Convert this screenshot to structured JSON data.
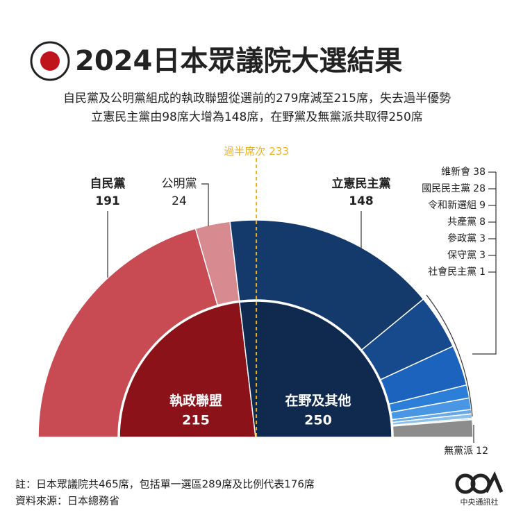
{
  "title": "2024日本眾議院大選結果",
  "subtitle": [
    "自民黨及公明黨組成的執政聯盟從選前的279席減至215席，失去過半優勢",
    "立憲民主黨由98席大增為148席，在野黨及無黨派共取得250席"
  ],
  "chart_data": {
    "type": "semi-donut",
    "categories": [
      "自民黨",
      "公明黨",
      "立憲民主黨",
      "維新會",
      "國民民主黨",
      "令和新選組",
      "共產黨",
      "參政黨",
      "保守黨",
      "社會民主黨",
      "無黨派"
    ],
    "values": [
      191,
      24,
      148,
      38,
      28,
      9,
      8,
      3,
      3,
      1,
      12
    ],
    "colors": [
      "#c84a52",
      "#d78b90",
      "#133a6b",
      "#174a8c",
      "#1c63bd",
      "#2b7fd8",
      "#4896e4",
      "#67aae8",
      "#8bbfec",
      "#b3d5f1",
      "#8c8c8c"
    ],
    "groups": {
      "categories": [
        "執政聯盟",
        "在野及其他"
      ],
      "values": [
        215,
        250
      ],
      "colors": [
        "#8b1219",
        "#0f2a4e"
      ]
    },
    "majority": {
      "label": "過半席次",
      "value": 233,
      "color": "#f0b21c"
    }
  },
  "notes": [
    "註：日本眾議院共465席，包括單一選區289席及比例代表176席",
    "資料來源：日本總務省"
  ],
  "logo": {
    "text": "中央通訊社"
  }
}
